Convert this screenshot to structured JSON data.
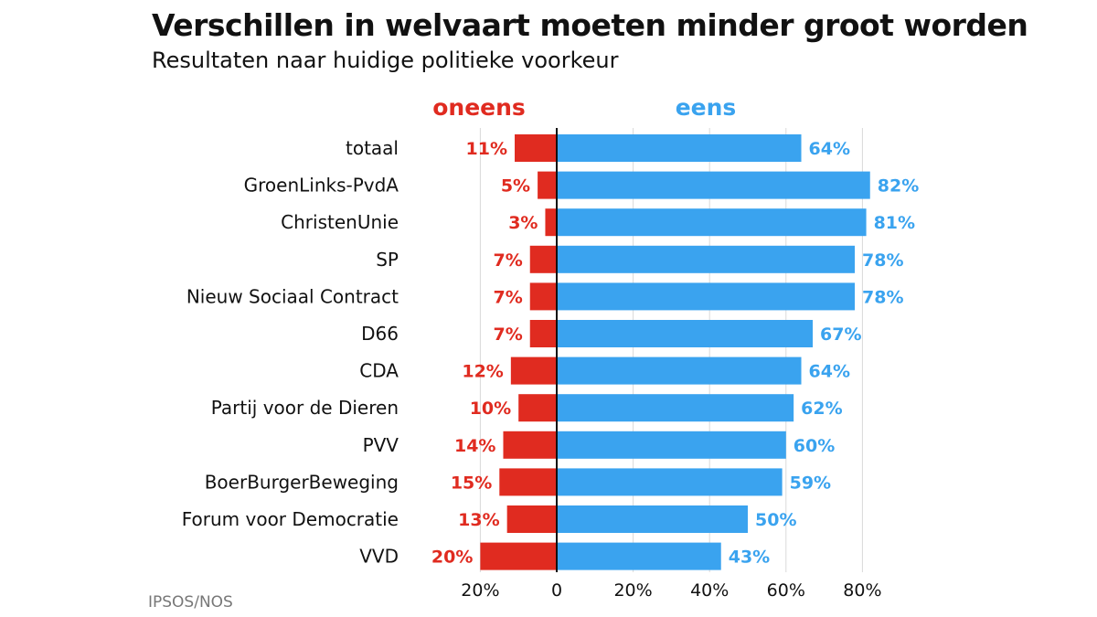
{
  "title": "Verschillen in welvaart moeten minder groot worden",
  "subtitle": "Resultaten naar huidige politieke voorkeur",
  "source": "IPSOS/NOS",
  "colors": {
    "oneens": "#e02b20",
    "eens": "#3aa3ef",
    "axis": "#111111"
  },
  "chart_data": {
    "type": "bar",
    "orientation": "horizontal-diverging",
    "categories": [
      "totaal",
      "GroenLinks-PvdA",
      "ChristenUnie",
      "SP",
      "Nieuw Sociaal Contract",
      "D66",
      "CDA",
      "Partij voor de Dieren",
      "PVV",
      "BoerBurgerBeweging",
      "Forum voor Democratie",
      "VVD"
    ],
    "series": [
      {
        "name": "oneens",
        "values": [
          11,
          5,
          3,
          7,
          7,
          7,
          12,
          10,
          14,
          15,
          13,
          20
        ]
      },
      {
        "name": "eens",
        "values": [
          64,
          82,
          81,
          78,
          78,
          67,
          64,
          62,
          60,
          59,
          50,
          43
        ]
      }
    ],
    "value_suffix": "%",
    "xlim": [
      -20,
      80
    ],
    "x_ticks": [
      -20,
      0,
      20,
      40,
      60,
      80
    ],
    "x_tick_labels": [
      "20%",
      "0",
      "20%",
      "40%",
      "60%",
      "80%"
    ],
    "grid": true
  }
}
